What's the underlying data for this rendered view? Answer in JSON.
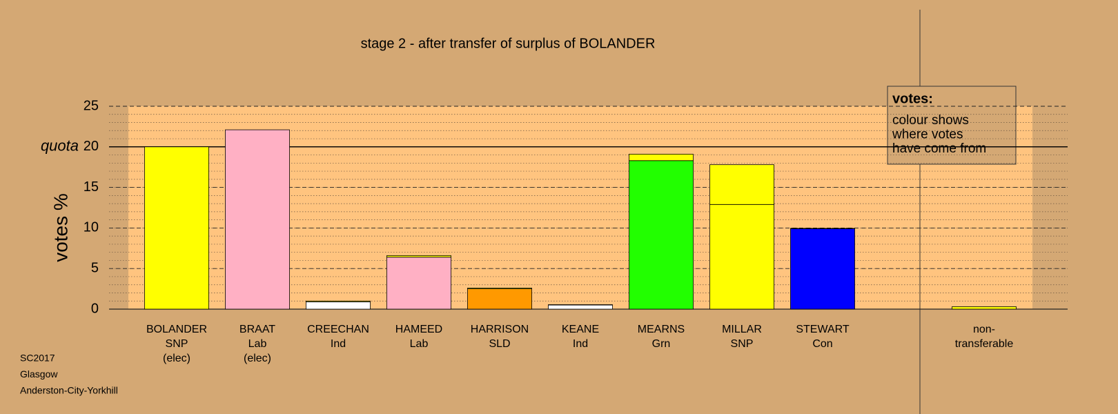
{
  "chart_data": {
    "type": "bar",
    "stacked": true,
    "title": "stage 2 - after transfer of surplus of BOLANDER",
    "y_label": "votes %",
    "categories": [
      [
        "BOLANDER",
        "SNP",
        "(elec)"
      ],
      [
        "BRAAT",
        "Lab",
        "(elec)"
      ],
      [
        "CREECHAN",
        "Ind"
      ],
      [
        "HAMEED",
        "Lab"
      ],
      [
        "HARRISON",
        "SLD"
      ],
      [
        "KEANE",
        "Ind"
      ],
      [
        "MEARNS",
        "Grn"
      ],
      [
        "MILLAR",
        "SNP"
      ],
      [
        "STEWART",
        "Con"
      ],
      null,
      [
        "non-",
        "transferable"
      ]
    ],
    "series": [
      {
        "colors": [
          "#ffff00",
          "#ffb0c4",
          "#ffffff",
          "#ffb0c4",
          "#ff9900",
          "#ffffff",
          "#22ff00",
          "#ffff00",
          "#0000ff",
          null,
          "#ffff00"
        ],
        "values": [
          20,
          22.1,
          0.9,
          6.4,
          2.5,
          0.5,
          18.3,
          12.9,
          9.9,
          null,
          0
        ]
      },
      {
        "color": "#ffff00",
        "values": [
          0,
          0,
          0.1,
          0.2,
          0.1,
          0.05,
          0.8,
          4.9,
          0.05,
          null,
          0.3
        ]
      }
    ],
    "ylim": [
      0,
      25
    ],
    "yticks": [
      0,
      5,
      10,
      15,
      20,
      25
    ],
    "minor_grid_step": 1,
    "quota": 20,
    "quota_label": "quota",
    "legend_box": {
      "title": "votes:",
      "lines": [
        "colour shows",
        "where votes",
        "have come from"
      ]
    },
    "footer": [
      "SC2017",
      "Glasgow",
      "Anderston-City-Yorkhill"
    ]
  }
}
